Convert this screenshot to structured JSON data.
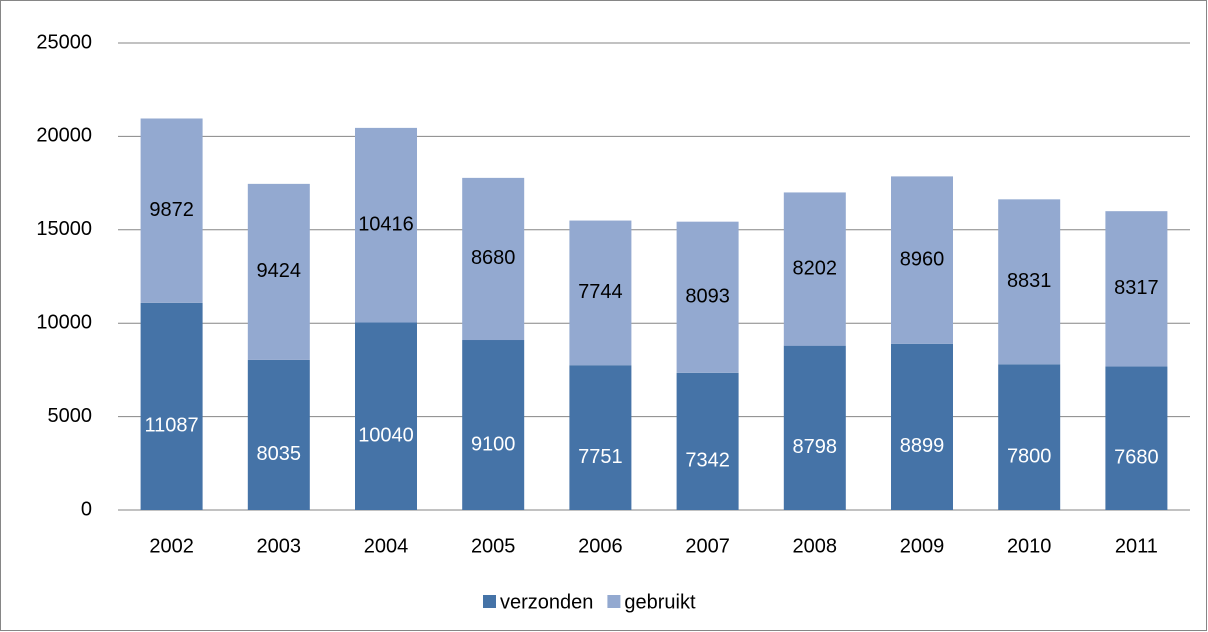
{
  "chart_data": {
    "type": "stacked_bar",
    "categories": [
      "2002",
      "2003",
      "2004",
      "2005",
      "2006",
      "2007",
      "2008",
      "2009",
      "2010",
      "2011"
    ],
    "series": [
      {
        "name": "verzonden",
        "color": "#4573a7",
        "values": [
          11087,
          8035,
          10040,
          9100,
          7751,
          7342,
          8798,
          8899,
          7800,
          7680
        ]
      },
      {
        "name": "gebruikt",
        "color": "#93a9d0",
        "values": [
          9872,
          9424,
          10416,
          8680,
          7744,
          8093,
          8202,
          8960,
          8831,
          8317
        ]
      }
    ],
    "ylim": [
      0,
      25000
    ],
    "yticks": [
      0,
      5000,
      10000,
      15000,
      20000,
      25000
    ],
    "grid": true,
    "legend": "bottom"
  }
}
